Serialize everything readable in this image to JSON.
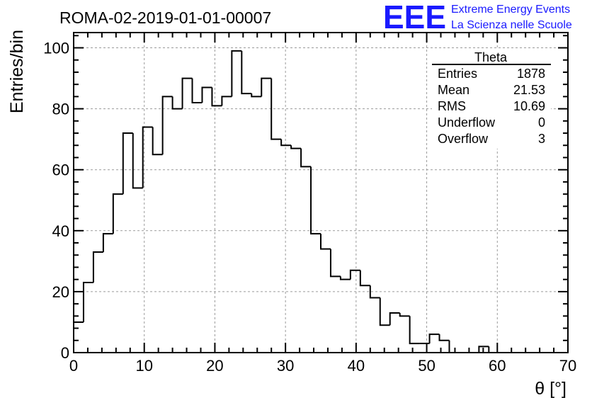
{
  "chart_data": {
    "type": "histogram",
    "title": "ROMA-02-2019-01-01-00007",
    "xlabel": "θ [°]",
    "ylabel": "Entries/bin",
    "xlim": [
      0,
      70
    ],
    "ylim": [
      0,
      105
    ],
    "grid": true,
    "bin_width": 1.4,
    "x_ticks": [
      "0",
      "10",
      "20",
      "30",
      "40",
      "50",
      "60",
      "70"
    ],
    "y_ticks": [
      "0",
      "20",
      "40",
      "60",
      "80",
      "100"
    ],
    "values": [
      10,
      23,
      33,
      39,
      52,
      72,
      54,
      74,
      65,
      84,
      80,
      90,
      82,
      87,
      81,
      84,
      99,
      85,
      84,
      90,
      70,
      68,
      67,
      61,
      39,
      34,
      25,
      24,
      27,
      22,
      18,
      9,
      13,
      12,
      3,
      3,
      6,
      4,
      0,
      0,
      0,
      2,
      0,
      0,
      0,
      0,
      0,
      0,
      0,
      0
    ]
  },
  "stats_box": {
    "title": "Theta",
    "rows": [
      {
        "label": "Entries",
        "value": "1878"
      },
      {
        "label": "Mean",
        "value": "21.53"
      },
      {
        "label": "RMS",
        "value": "10.69"
      },
      {
        "label": "Underflow",
        "value": "0"
      },
      {
        "label": "Overflow",
        "value": "3"
      }
    ]
  },
  "logo": {
    "mark": "EEE",
    "line1": "Extreme Energy Events",
    "line2": "La Scienza nelle Scuole",
    "color": "#1a1aff"
  },
  "colors": {
    "line": "#000000",
    "grid": "#9a9a9a",
    "background": "#ffffff"
  }
}
